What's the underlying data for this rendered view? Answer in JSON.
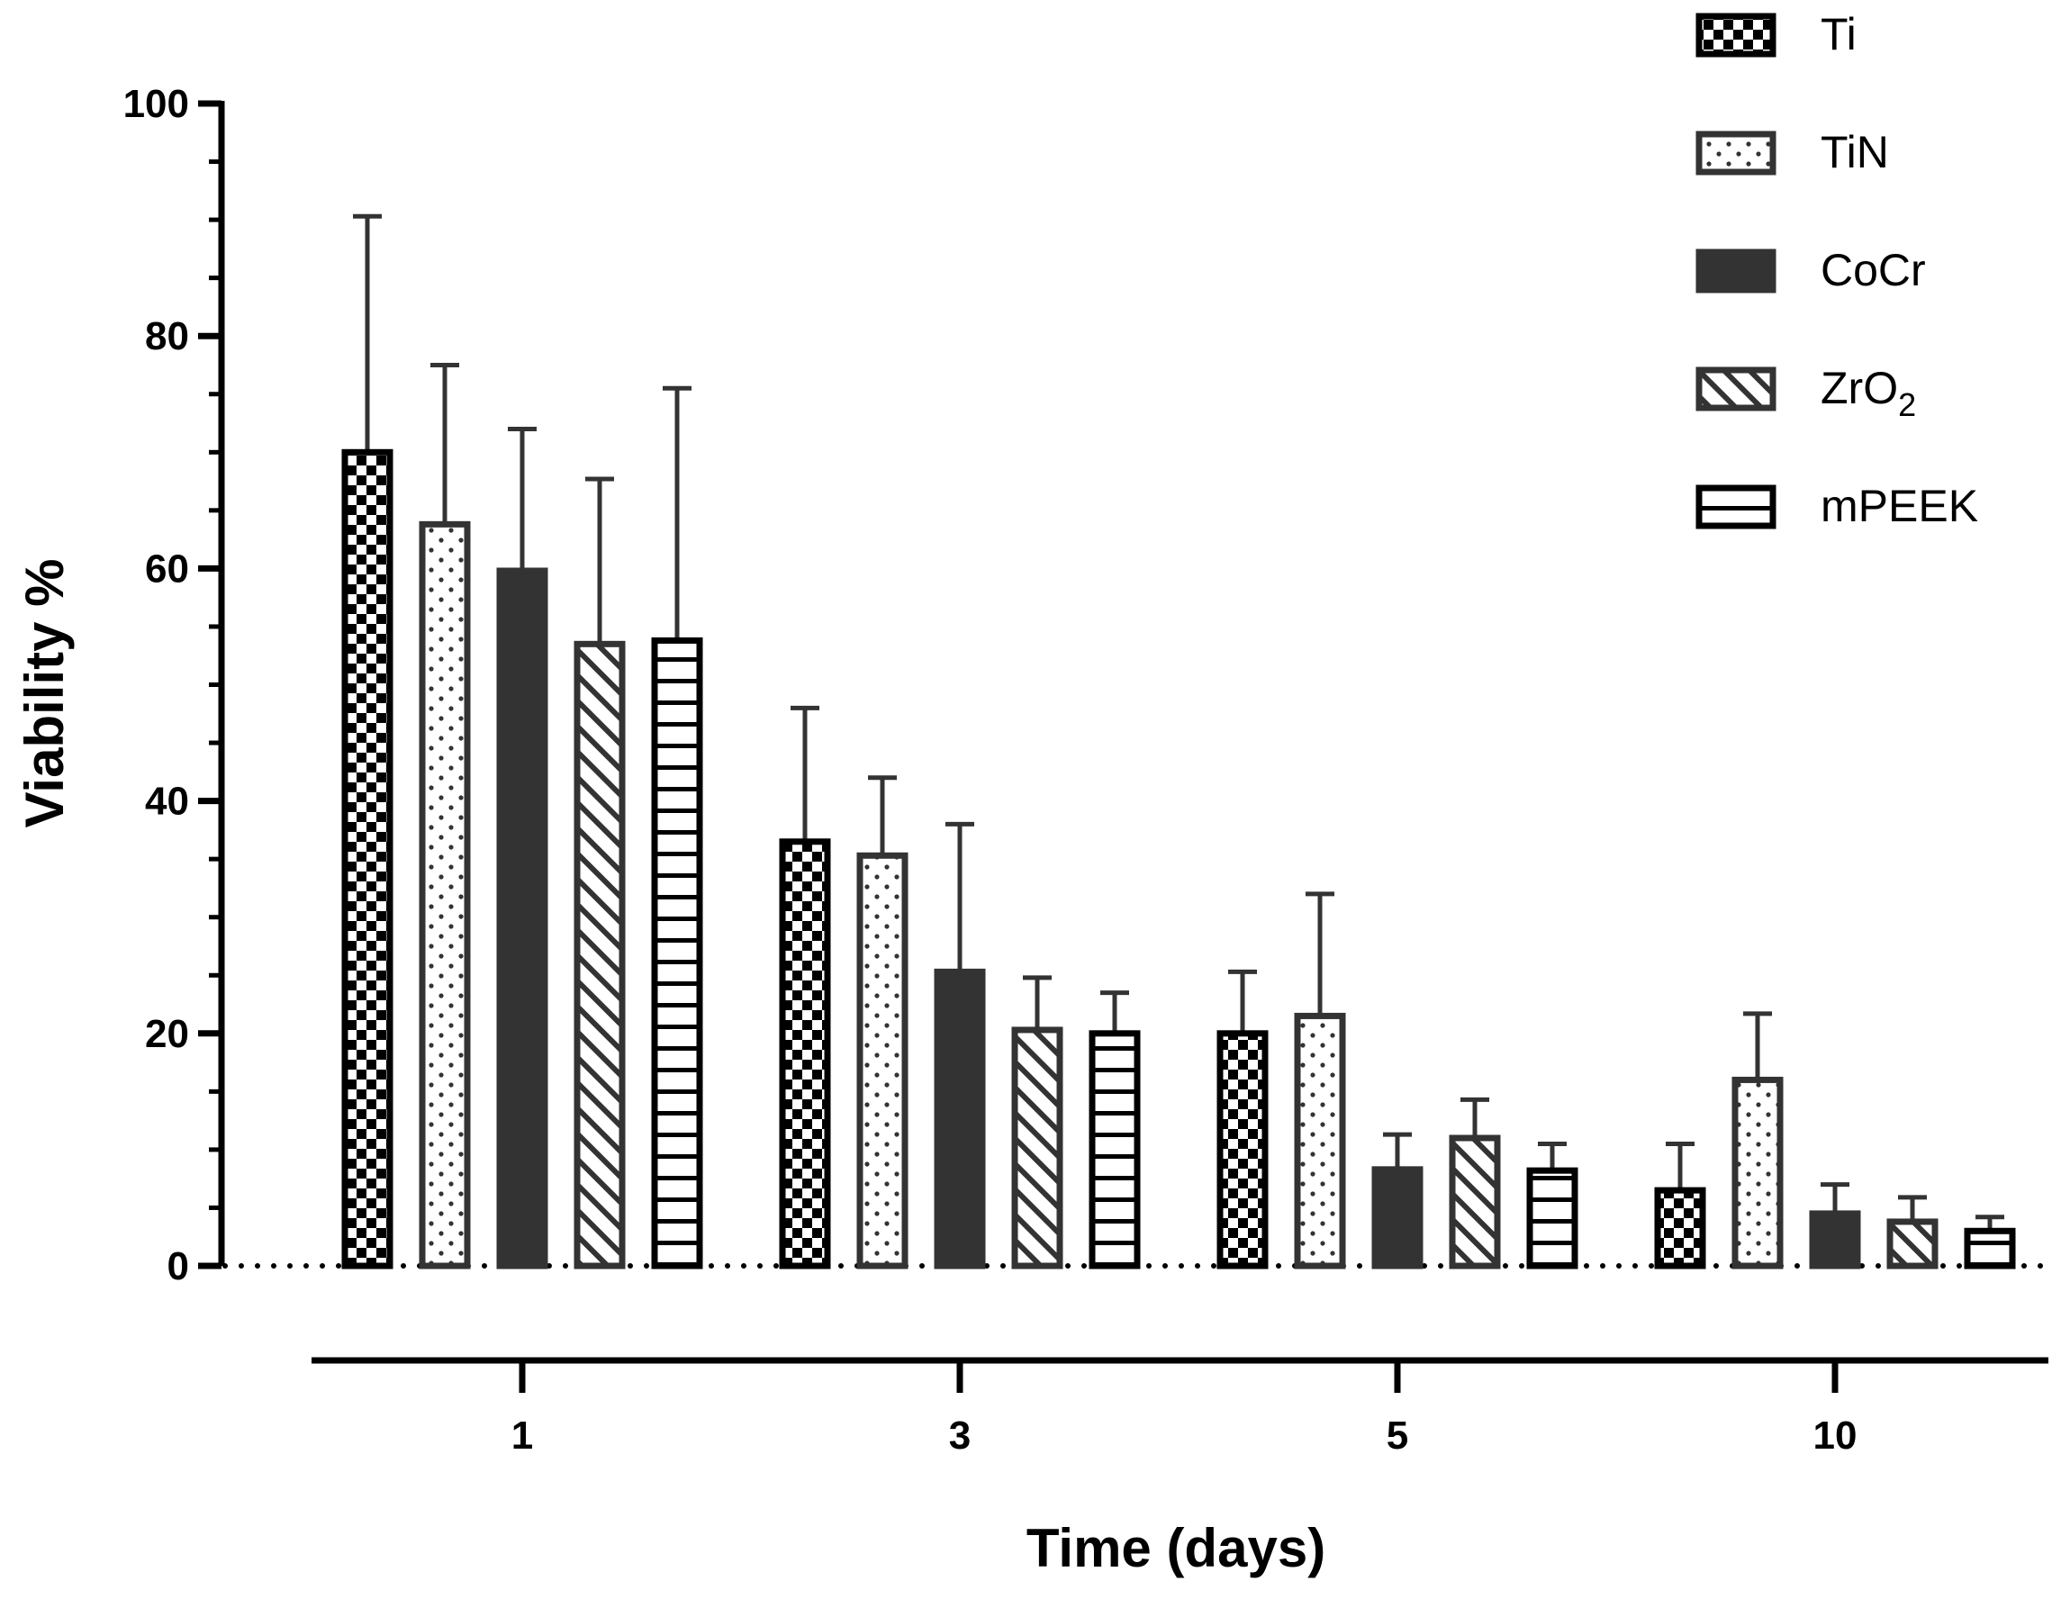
{
  "chart_data": {
    "type": "bar",
    "title": "",
    "xlabel": "Time (days)",
    "ylabel": "Viability %",
    "ylim": [
      0,
      100
    ],
    "yticks": [
      0,
      20,
      40,
      60,
      80,
      100
    ],
    "categories": [
      "1",
      "3",
      "5",
      "10"
    ],
    "legend_position": "top-right",
    "series": [
      {
        "name": "Ti",
        "name_main": "Ti",
        "name_sub": "",
        "pattern": "checker",
        "values": [
          70,
          36.5,
          20,
          6.5
        ],
        "errors": [
          20.3,
          11.5,
          5.3,
          4.0
        ]
      },
      {
        "name": "TiN",
        "name_main": "TiN",
        "name_sub": "",
        "pattern": "dots",
        "values": [
          63.8,
          35.3,
          21.5,
          16
        ],
        "errors": [
          13.7,
          6.7,
          10.5,
          5.7
        ]
      },
      {
        "name": "CoCr",
        "name_main": "CoCr",
        "name_sub": "",
        "pattern": "solid",
        "values": [
          59.8,
          25.3,
          8.3,
          4.5
        ],
        "errors": [
          12.2,
          12.7,
          3.0,
          2.5
        ]
      },
      {
        "name": "ZrO2",
        "name_main": "ZrO",
        "name_sub": "2",
        "pattern": "diagonal",
        "values": [
          53.5,
          20.3,
          11,
          3.8
        ],
        "errors": [
          14.2,
          4.5,
          3.3,
          2.1
        ]
      },
      {
        "name": "mPEEK",
        "name_main": "mPEEK",
        "name_sub": "",
        "pattern": "horizontal",
        "values": [
          53.8,
          20,
          8.2,
          3
        ],
        "errors": [
          21.7,
          3.5,
          2.3,
          1.2
        ]
      }
    ],
    "colors": {
      "black": "#000000",
      "dark": "#333333",
      "light": "#ffffff"
    }
  }
}
